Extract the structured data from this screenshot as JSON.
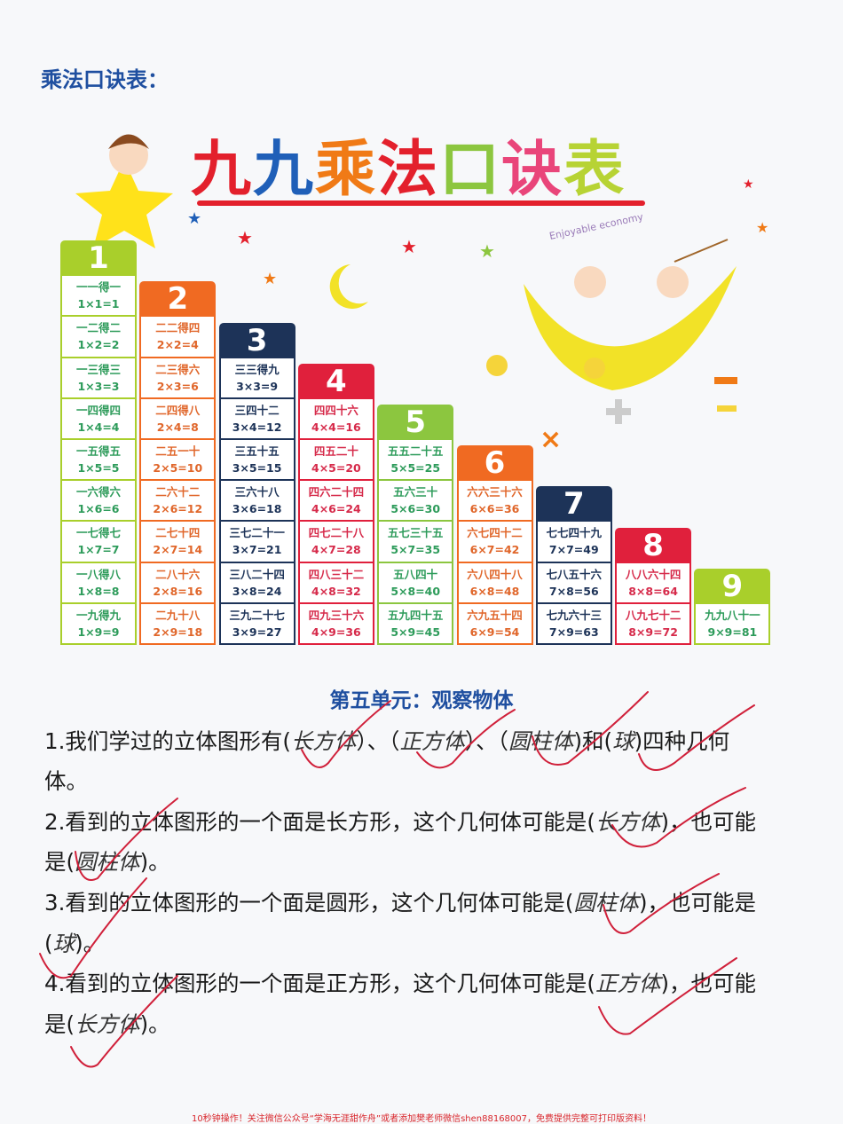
{
  "heading": "乘法口诀表：",
  "title_chars": [
    {
      "c": "九",
      "color": "#e3202c"
    },
    {
      "c": "九",
      "color": "#1f5fb8"
    },
    {
      "c": "乘",
      "color": "#f07a16"
    },
    {
      "c": "法",
      "color": "#e3202c"
    },
    {
      "c": "口",
      "color": "#8cc63f"
    },
    {
      "c": "诀",
      "color": "#e9457a"
    },
    {
      "c": "表",
      "color": "#b7d334"
    }
  ],
  "illustration_text": "Enjoyable economy",
  "columns": [
    {
      "num": "1",
      "head": "#a9cf2b",
      "text": "#2d9b5a",
      "cells": [
        [
          "一一得一",
          "1×1=1"
        ],
        [
          "一二得二",
          "1×2=2"
        ],
        [
          "一三得三",
          "1×3=3"
        ],
        [
          "一四得四",
          "1×4=4"
        ],
        [
          "一五得五",
          "1×5=5"
        ],
        [
          "一六得六",
          "1×6=6"
        ],
        [
          "一七得七",
          "1×7=7"
        ],
        [
          "一八得八",
          "1×8=8"
        ],
        [
          "一九得九",
          "1×9=9"
        ]
      ]
    },
    {
      "num": "2",
      "head": "#f06a22",
      "text": "#e0662a",
      "cells": [
        [
          "二二得四",
          "2×2=4"
        ],
        [
          "二三得六",
          "2×3=6"
        ],
        [
          "二四得八",
          "2×4=8"
        ],
        [
          "二五一十",
          "2×5=10"
        ],
        [
          "二六十二",
          "2×6=12"
        ],
        [
          "二七十四",
          "2×7=14"
        ],
        [
          "二八十六",
          "2×8=16"
        ],
        [
          "二九十八",
          "2×9=18"
        ]
      ]
    },
    {
      "num": "3",
      "head": "#1d3358",
      "text": "#1d3358",
      "cells": [
        [
          "三三得九",
          "3×3=9"
        ],
        [
          "三四十二",
          "3×4=12"
        ],
        [
          "三五十五",
          "3×5=15"
        ],
        [
          "三六十八",
          "3×6=18"
        ],
        [
          "三七二十一",
          "3×7=21"
        ],
        [
          "三八二十四",
          "3×8=24"
        ],
        [
          "三九二十七",
          "3×9=27"
        ]
      ]
    },
    {
      "num": "4",
      "head": "#e0203c",
      "text": "#d62a4a",
      "cells": [
        [
          "四四十六",
          "4×4=16"
        ],
        [
          "四五二十",
          "4×5=20"
        ],
        [
          "四六二十四",
          "4×6=24"
        ],
        [
          "四七二十八",
          "4×7=28"
        ],
        [
          "四八三十二",
          "4×8=32"
        ],
        [
          "四九三十六",
          "4×9=36"
        ]
      ]
    },
    {
      "num": "5",
      "head": "#8cc63f",
      "text": "#2d9b5a",
      "cells": [
        [
          "五五二十五",
          "5×5=25"
        ],
        [
          "五六三十",
          "5×6=30"
        ],
        [
          "五七三十五",
          "5×7=35"
        ],
        [
          "五八四十",
          "5×8=40"
        ],
        [
          "五九四十五",
          "5×9=45"
        ]
      ]
    },
    {
      "num": "6",
      "head": "#f06a22",
      "text": "#e0662a",
      "cells": [
        [
          "六六三十六",
          "6×6=36"
        ],
        [
          "六七四十二",
          "6×7=42"
        ],
        [
          "六八四十八",
          "6×8=48"
        ],
        [
          "六九五十四",
          "6×9=54"
        ]
      ]
    },
    {
      "num": "7",
      "head": "#1d3358",
      "text": "#1d3358",
      "cells": [
        [
          "七七四十九",
          "7×7=49"
        ],
        [
          "七八五十六",
          "7×8=56"
        ],
        [
          "七九六十三",
          "7×9=63"
        ]
      ]
    },
    {
      "num": "8",
      "head": "#e0203c",
      "text": "#d62a4a",
      "cells": [
        [
          "八八六十四",
          "8×8=64"
        ],
        [
          "八九七十二",
          "8×9=72"
        ]
      ]
    },
    {
      "num": "9",
      "head": "#a9cf2b",
      "text": "#2d9b5a",
      "cells": [
        [
          "九九八十一",
          "9×9=81"
        ]
      ]
    }
  ],
  "unit_title": "第五单元：观察物体",
  "lines": [
    [
      {
        "t": "1.我们学过的立体图形有("
      },
      {
        "a": "长方体"
      },
      {
        "t": "）、（"
      },
      {
        "a": "正方体"
      },
      {
        "t": "）、（"
      },
      {
        "a": "圆柱体"
      },
      {
        "t": ")和("
      },
      {
        "a": "球"
      },
      {
        "t": ")四种几何"
      }
    ],
    [
      {
        "t": "体。"
      }
    ],
    [
      {
        "t": "2.看到的立体图形的一个面是长方形，这个几何体可能是("
      },
      {
        "a": "长方体"
      },
      {
        "t": ")，也可能"
      }
    ],
    [
      {
        "t": "是("
      },
      {
        "a": "圆柱体"
      },
      {
        "t": ")。"
      }
    ],
    [
      {
        "t": "3.看到的立体图形的一个面是圆形，这个几何体可能是("
      },
      {
        "a": "圆柱体"
      },
      {
        "t": ")，也可能是"
      }
    ],
    [
      {
        "t": "("
      },
      {
        "a": "球"
      },
      {
        "t": ")。"
      }
    ],
    [
      {
        "t": "4.看到的立体图形的一个面是正方形，这个几何体可能是("
      },
      {
        "a": "正方体"
      },
      {
        "t": ")，也可能"
      }
    ],
    [
      {
        "t": "是("
      },
      {
        "a": "长方体"
      },
      {
        "t": ")。"
      }
    ]
  ],
  "footer": "10秒钟操作！关注微信公众号“学海无涯甜作舟”或者添加樊老师微信shen88168007，免费提供完整可打印版资料！"
}
